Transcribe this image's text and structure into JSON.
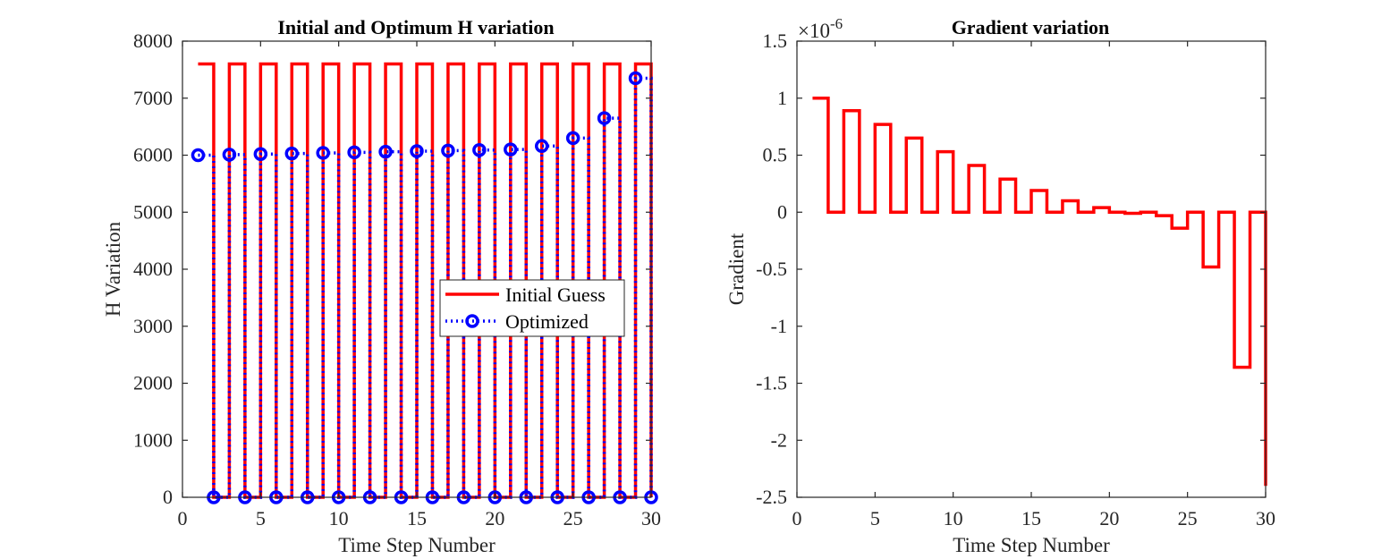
{
  "chart_data": [
    {
      "type": "line",
      "step": true,
      "title": "Initial and Optimum H variation",
      "xlabel": "Time Step Number",
      "ylabel": "H Variation",
      "xlim": [
        0,
        30
      ],
      "ylim": [
        0,
        8000
      ],
      "xticks": [
        "0",
        "5",
        "10",
        "15",
        "20",
        "25",
        "30"
      ],
      "yticks": [
        "0",
        "1000",
        "2000",
        "3000",
        "4000",
        "5000",
        "6000",
        "7000",
        "8000"
      ],
      "grid": false,
      "legend": {
        "placement": "east"
      },
      "series": [
        {
          "name": "Initial Guess",
          "color": "#ff0000",
          "style": "solid",
          "x": [
            1,
            2,
            3,
            4,
            5,
            6,
            7,
            8,
            9,
            10,
            11,
            12,
            13,
            14,
            15,
            16,
            17,
            18,
            19,
            20,
            21,
            22,
            23,
            24,
            25,
            26,
            27,
            28,
            29,
            30
          ],
          "y": [
            7600,
            0,
            7600,
            0,
            7600,
            0,
            7600,
            0,
            7600,
            0,
            7600,
            0,
            7600,
            0,
            7600,
            0,
            7600,
            0,
            7600,
            0,
            7600,
            0,
            7600,
            0,
            7600,
            0,
            7600,
            0,
            7600,
            0
          ]
        },
        {
          "name": "Optimized",
          "color": "#0000ff",
          "style": "dotted",
          "marker": "circle",
          "x": [
            1,
            2,
            3,
            4,
            5,
            6,
            7,
            8,
            9,
            10,
            11,
            12,
            13,
            14,
            15,
            16,
            17,
            18,
            19,
            20,
            21,
            22,
            23,
            24,
            25,
            26,
            27,
            28,
            29,
            30
          ],
          "y": [
            6000,
            0,
            6010,
            0,
            6020,
            0,
            6030,
            0,
            6040,
            0,
            6050,
            0,
            6060,
            0,
            6070,
            0,
            6080,
            0,
            6090,
            0,
            6100,
            0,
            6160,
            0,
            6300,
            0,
            6650,
            0,
            7350,
            0
          ]
        }
      ]
    },
    {
      "type": "line",
      "step": true,
      "title": "Gradient variation",
      "xlabel": "Time Step Number",
      "ylabel": "Gradient",
      "exponent_label": "×10",
      "exponent_power": "-6",
      "xlim": [
        0,
        30
      ],
      "ylim": [
        -2.5,
        1.5
      ],
      "xticks": [
        "0",
        "5",
        "10",
        "15",
        "20",
        "25",
        "30"
      ],
      "yticks": [
        "-2.5",
        "-2",
        "-1.5",
        "-1",
        "-0.5",
        "0",
        "0.5",
        "1",
        "1.5"
      ],
      "grid": false,
      "series": [
        {
          "color": "#ff0000",
          "style": "solid",
          "x": [
            1,
            2,
            3,
            4,
            5,
            6,
            7,
            8,
            9,
            10,
            11,
            12,
            13,
            14,
            15,
            16,
            17,
            18,
            19,
            20,
            21,
            22,
            23,
            24,
            25,
            26,
            27,
            28,
            29,
            30
          ],
          "y": [
            1.0,
            0,
            0.89,
            0,
            0.77,
            0,
            0.65,
            0,
            0.53,
            0,
            0.41,
            0,
            0.29,
            0,
            0.19,
            0,
            0.1,
            0,
            0.04,
            0,
            -0.01,
            0,
            -0.03,
            -0.14,
            0,
            -0.48,
            0,
            -1.36,
            0,
            -2.4
          ]
        }
      ]
    }
  ]
}
